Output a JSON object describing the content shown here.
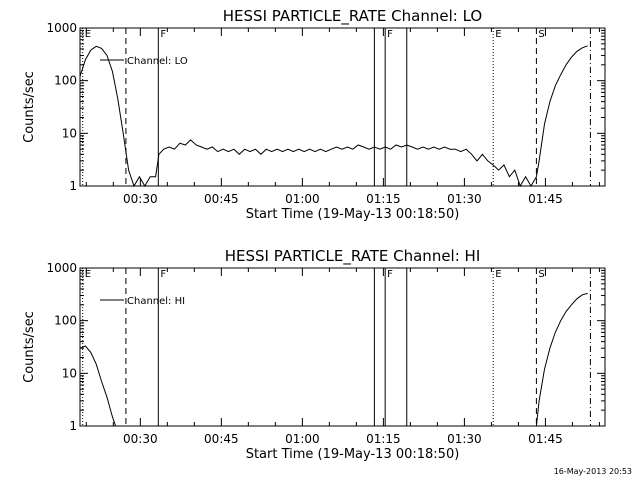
{
  "colors": {
    "background": "#ffffff",
    "foreground": "#000000"
  },
  "footer": {
    "timestamp": "16-May-2013 20:53"
  },
  "chart_data": [
    {
      "type": "line",
      "title": "HESSI PARTICLE_RATE Channel: LO",
      "xlabel": "Start Time (19-May-13 00:18:50)",
      "ylabel": "Counts/sec",
      "x_unit": "minutes after 00:18:50 on 19-May-13",
      "xlim": [
        0,
        97.2
      ],
      "ylim": [
        1,
        1000
      ],
      "yscale": "log",
      "x_ticks": [
        {
          "x": 11.17,
          "label": "00:30"
        },
        {
          "x": 26.17,
          "label": "00:45"
        },
        {
          "x": 41.17,
          "label": "01:00"
        },
        {
          "x": 56.17,
          "label": "01:15"
        },
        {
          "x": 71.17,
          "label": "01:30"
        },
        {
          "x": 86.17,
          "label": "01:45"
        }
      ],
      "y_ticks": [
        {
          "y": 1,
          "label": "1"
        },
        {
          "y": 10,
          "label": "10"
        },
        {
          "y": 100,
          "label": "100"
        },
        {
          "y": 1000,
          "label": "1000"
        }
      ],
      "legend": "Channel: LO",
      "legend_position": "top-left",
      "flags": [
        {
          "x": 0.5,
          "label": "E",
          "style": "dotted"
        },
        {
          "x": 8.5,
          "label": "",
          "style": "dashed"
        },
        {
          "x": 14.5,
          "label": "F",
          "style": "solid"
        },
        {
          "x": 54.5,
          "label": "",
          "style": "solid"
        },
        {
          "x": 56.5,
          "label": "F",
          "style": "solid"
        },
        {
          "x": 60.5,
          "label": "",
          "style": "solid"
        },
        {
          "x": 76.5,
          "label": "E",
          "style": "dotted"
        },
        {
          "x": 84.5,
          "label": "S",
          "style": "dashed"
        },
        {
          "x": 94.5,
          "label": "",
          "style": "dashdot"
        }
      ],
      "series": [
        {
          "style": "solid",
          "points": [
            [
              0,
              120
            ],
            [
              1,
              250
            ],
            [
              2,
              380
            ],
            [
              3,
              450
            ],
            [
              4,
              410
            ],
            [
              5,
              300
            ],
            [
              6,
              150
            ],
            [
              7,
              45
            ],
            [
              8,
              10
            ],
            [
              9,
              2
            ],
            [
              10,
              1
            ],
            [
              11,
              1.5
            ],
            [
              12,
              1
            ],
            [
              13,
              1.5
            ],
            [
              14,
              1.5
            ],
            [
              14.6,
              4
            ],
            [
              15.5,
              5
            ],
            [
              16.5,
              5.5
            ],
            [
              17.5,
              5
            ],
            [
              18.5,
              6.5
            ],
            [
              19.5,
              6
            ],
            [
              20.5,
              7.5
            ],
            [
              21.5,
              6
            ],
            [
              22.5,
              5.5
            ],
            [
              23.5,
              5
            ],
            [
              24.5,
              5.5
            ],
            [
              25.5,
              4.5
            ],
            [
              26.5,
              5
            ],
            [
              27.5,
              4.5
            ],
            [
              28.5,
              5
            ],
            [
              29.5,
              4
            ],
            [
              30.5,
              5
            ],
            [
              31.5,
              4.5
            ],
            [
              32.5,
              5
            ],
            [
              33.5,
              4
            ],
            [
              34.5,
              5
            ],
            [
              35.5,
              4.5
            ],
            [
              36.5,
              5
            ],
            [
              37.5,
              4.5
            ],
            [
              38.5,
              5
            ],
            [
              39.5,
              4.5
            ],
            [
              40.5,
              5
            ],
            [
              41.5,
              4.5
            ],
            [
              42.5,
              5
            ],
            [
              43.5,
              4.5
            ],
            [
              44.5,
              5
            ],
            [
              45.5,
              4.5
            ],
            [
              46.5,
              5
            ],
            [
              47.5,
              5.5
            ],
            [
              48.5,
              5
            ],
            [
              49.5,
              5.5
            ],
            [
              50.5,
              5
            ],
            [
              51.5,
              6
            ],
            [
              52.5,
              5.5
            ],
            [
              53.5,
              5
            ],
            [
              54.5,
              5.5
            ],
            [
              55.5,
              5
            ],
            [
              56.5,
              5.5
            ],
            [
              57.5,
              5
            ],
            [
              58.5,
              6
            ],
            [
              59.5,
              5.5
            ],
            [
              60.5,
              6
            ],
            [
              61.5,
              5.5
            ],
            [
              62.5,
              5
            ],
            [
              63.5,
              5.5
            ],
            [
              64.5,
              5
            ],
            [
              65.5,
              5.5
            ],
            [
              66.5,
              5
            ],
            [
              67.5,
              5.5
            ],
            [
              68.5,
              5
            ],
            [
              69.5,
              5
            ],
            [
              70.5,
              4.5
            ],
            [
              71.5,
              5
            ],
            [
              72.5,
              4
            ],
            [
              73.5,
              3
            ],
            [
              74.5,
              4
            ],
            [
              75.5,
              3
            ],
            [
              76.5,
              2.5
            ],
            [
              77.5,
              2
            ],
            [
              78.5,
              2.5
            ],
            [
              79.5,
              1.5
            ],
            [
              80.5,
              2
            ],
            [
              81.5,
              1
            ],
            [
              82.5,
              1.5
            ],
            [
              83.5,
              1
            ],
            [
              84.5,
              1.5
            ],
            [
              85,
              3
            ],
            [
              86,
              15
            ],
            [
              87,
              40
            ],
            [
              88,
              80
            ],
            [
              89,
              130
            ],
            [
              90,
              200
            ],
            [
              91,
              280
            ],
            [
              92,
              360
            ],
            [
              93,
              420
            ],
            [
              94,
              460
            ]
          ]
        }
      ]
    },
    {
      "type": "line",
      "title": "HESSI PARTICLE_RATE Channel: HI",
      "xlabel": "Start Time (19-May-13 00:18:50)",
      "ylabel": "Counts/sec",
      "x_unit": "minutes after 00:18:50 on 19-May-13",
      "xlim": [
        0,
        97.2
      ],
      "ylim": [
        1,
        1000
      ],
      "yscale": "log",
      "x_ticks": [
        {
          "x": 11.17,
          "label": "00:30"
        },
        {
          "x": 26.17,
          "label": "00:45"
        },
        {
          "x": 41.17,
          "label": "01:00"
        },
        {
          "x": 56.17,
          "label": "01:15"
        },
        {
          "x": 71.17,
          "label": "01:30"
        },
        {
          "x": 86.17,
          "label": "01:45"
        }
      ],
      "y_ticks": [
        {
          "y": 1,
          "label": "1"
        },
        {
          "y": 10,
          "label": "10"
        },
        {
          "y": 100,
          "label": "100"
        },
        {
          "y": 1000,
          "label": "1000"
        }
      ],
      "legend": "Channel: HI",
      "legend_position": "top-left",
      "flags": [
        {
          "x": 0.5,
          "label": "E",
          "style": "dotted"
        },
        {
          "x": 8.5,
          "label": "",
          "style": "dashed"
        },
        {
          "x": 14.5,
          "label": "F",
          "style": "solid"
        },
        {
          "x": 54.5,
          "label": "",
          "style": "solid"
        },
        {
          "x": 56.5,
          "label": "F",
          "style": "solid"
        },
        {
          "x": 60.5,
          "label": "",
          "style": "solid"
        },
        {
          "x": 76.5,
          "label": "E",
          "style": "dotted"
        },
        {
          "x": 84.5,
          "label": "S",
          "style": "dashed"
        },
        {
          "x": 94.5,
          "label": "",
          "style": "dashdot"
        }
      ],
      "series": [
        {
          "style": "solid",
          "points": [
            [
              0,
              30
            ],
            [
              1,
              33
            ],
            [
              2,
              25
            ],
            [
              3,
              15
            ],
            [
              4,
              7
            ],
            [
              5,
              3.5
            ],
            [
              6,
              1.5
            ],
            [
              6.6,
              1
            ]
          ]
        },
        {
          "style": "solid",
          "points": [
            [
              84.5,
              1
            ],
            [
              85,
              3
            ],
            [
              86,
              12
            ],
            [
              87,
              30
            ],
            [
              88,
              60
            ],
            [
              89,
              100
            ],
            [
              90,
              150
            ],
            [
              91,
              200
            ],
            [
              92,
              260
            ],
            [
              93,
              310
            ],
            [
              94,
              330
            ]
          ]
        }
      ]
    }
  ]
}
